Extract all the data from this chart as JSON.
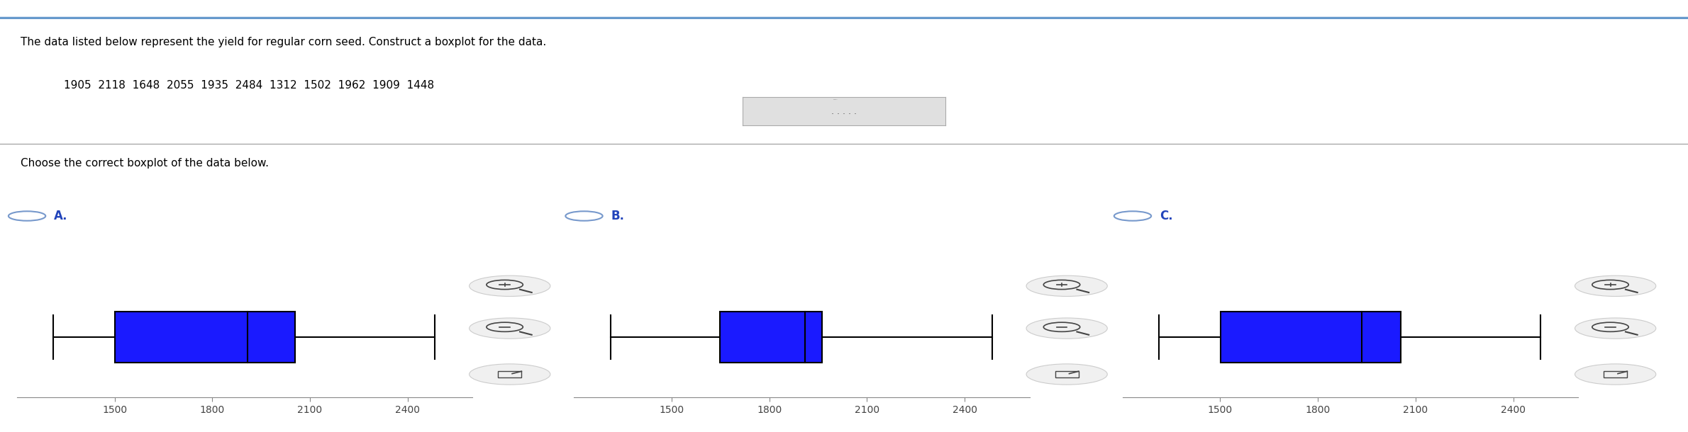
{
  "title_text": "The data listed below represent the yield for regular corn seed. Construct a boxplot for the data.",
  "data_values_str": "1905  2118  1648  2055  1935  2484  1312  1502  1962  1909  1448",
  "choose_text": "Choose the correct boxplot of the data below.",
  "panels": [
    {
      "label": "A.",
      "min_val": 1312,
      "q1": 1502,
      "median": 1909,
      "q3": 2055,
      "max_val": 2484
    },
    {
      "label": "B.",
      "min_val": 1312,
      "q1": 1648,
      "median": 1909,
      "q3": 1962,
      "max_val": 2484
    },
    {
      "label": "C.",
      "min_val": 1312,
      "q1": 1502,
      "median": 1935,
      "q3": 2055,
      "max_val": 2484
    }
  ],
  "xlim": [
    1200,
    2600
  ],
  "xticks": [
    1500,
    1800,
    2100,
    2400
  ],
  "box_color": "#1a1aff",
  "border_color": "#000000",
  "whisker_color": "#000000",
  "option_circle_color": "#7799cc",
  "label_color": "#2244bb",
  "bg_color": "#ffffff",
  "header_line_color": "#6699cc",
  "sep_line_color": "#999999",
  "tick_label_color": "#444444",
  "expand_dot_color": "#666666",
  "expand_bg": "#e0e0e0",
  "expand_border": "#aaaaaa"
}
